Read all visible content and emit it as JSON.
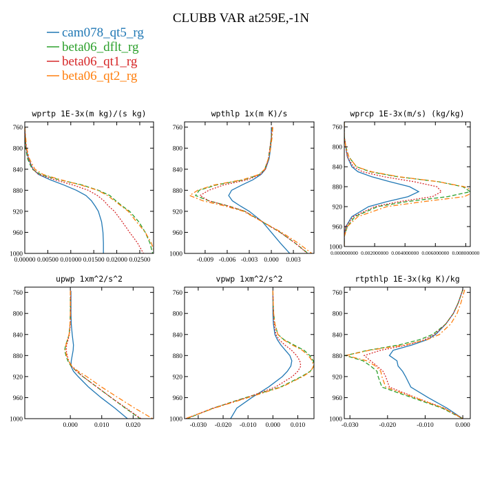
{
  "title": "CLUBB VAR at259E,-1N",
  "legend": [
    {
      "name": "cam078_qt5_rg",
      "color": "#1f77b4",
      "dash": "solid"
    },
    {
      "name": "beta06_dflt_rg",
      "color": "#2ca02c",
      "dash": "dash"
    },
    {
      "name": "beta06_qt1_rg",
      "color": "#d62728",
      "dash": "dot"
    },
    {
      "name": "beta06_qt2_rg",
      "color": "#ff7f0e",
      "dash": "dashdot"
    }
  ],
  "chart_data": [
    {
      "type": "line",
      "title": "wprtp  1E-3x(m kg)/(s kg)",
      "xlim": [
        0.0,
        0.028
      ],
      "ylim": [
        750,
        1000
      ],
      "y_reversed": true,
      "xticks": [
        "0.00000",
        "0.00500",
        "0.01000",
        "0.01500",
        "0.02000",
        "0.02500"
      ],
      "xtick_values": [
        0.0,
        0.005,
        0.01,
        0.015,
        0.02,
        0.025
      ],
      "yticks": [
        "760",
        "800",
        "840",
        "880",
        "920",
        "960",
        "1000"
      ],
      "ytick_values": [
        760,
        800,
        840,
        880,
        920,
        960,
        1000
      ],
      "y": [
        760,
        780,
        800,
        820,
        840,
        850,
        860,
        870,
        880,
        890,
        900,
        910,
        920,
        940,
        960,
        980,
        1000
      ],
      "series": [
        {
          "name": "cam078_qt5_rg",
          "x": [
            0.0,
            0.0001,
            0.0003,
            0.0008,
            0.0018,
            0.003,
            0.0055,
            0.0085,
            0.0112,
            0.0133,
            0.0145,
            0.0153,
            0.016,
            0.0167,
            0.017,
            0.0171,
            0.0171
          ]
        },
        {
          "name": "beta06_dflt_rg",
          "x": [
            0.0,
            0.0001,
            0.0002,
            0.0006,
            0.0016,
            0.0035,
            0.0075,
            0.0125,
            0.016,
            0.0185,
            0.0198,
            0.0212,
            0.0228,
            0.0248,
            0.0262,
            0.0272,
            0.0278
          ]
        },
        {
          "name": "beta06_qt1_rg",
          "x": [
            0.0,
            0.0001,
            0.0003,
            0.0008,
            0.0018,
            0.003,
            0.0065,
            0.0105,
            0.0138,
            0.0158,
            0.0172,
            0.0182,
            0.0195,
            0.0212,
            0.0228,
            0.0245,
            0.0258
          ]
        },
        {
          "name": "beta06_qt2_rg",
          "x": [
            0.0,
            0.0002,
            0.0004,
            0.001,
            0.0022,
            0.004,
            0.0078,
            0.0122,
            0.0158,
            0.018,
            0.0195,
            0.021,
            0.0225,
            0.0243,
            0.0262,
            0.0275,
            0.0283
          ]
        }
      ]
    },
    {
      "type": "line",
      "title": "wpthlp  1x(m K)/s",
      "xlim": [
        -0.0118,
        0.0058
      ],
      "ylim": [
        750,
        1000
      ],
      "y_reversed": true,
      "xticks": [
        "-0.009",
        "-0.006",
        "-0.003",
        "0.000",
        "0.003"
      ],
      "xtick_values": [
        -0.009,
        -0.006,
        -0.003,
        0.0,
        0.003
      ],
      "yticks": [
        "760",
        "800",
        "840",
        "880",
        "920",
        "960",
        "1000"
      ],
      "ytick_values": [
        760,
        800,
        840,
        880,
        920,
        960,
        1000
      ],
      "y": [
        760,
        780,
        800,
        820,
        840,
        850,
        860,
        870,
        880,
        890,
        900,
        910,
        920,
        940,
        960,
        980,
        1000
      ],
      "series": [
        {
          "name": "cam078_qt5_rg",
          "x": [
            0.0,
            0.0,
            -0.0001,
            -0.0003,
            -0.0008,
            -0.0014,
            -0.0025,
            -0.004,
            -0.0054,
            -0.0058,
            -0.0053,
            -0.0042,
            -0.003,
            -0.0012,
            0.0,
            0.0012,
            0.0025
          ]
        },
        {
          "name": "beta06_dflt_rg",
          "x": [
            0.0001,
            0.0,
            -0.0002,
            -0.0004,
            -0.0009,
            -0.0016,
            -0.0037,
            -0.0075,
            -0.0098,
            -0.0103,
            -0.0085,
            -0.0058,
            -0.0036,
            -0.0012,
            0.0012,
            0.0032,
            0.005
          ]
        },
        {
          "name": "beta06_qt1_rg",
          "x": [
            0.0001,
            0.0,
            -0.0002,
            -0.0004,
            -0.0008,
            -0.0015,
            -0.0032,
            -0.0065,
            -0.0085,
            -0.0097,
            -0.0085,
            -0.0058,
            -0.0036,
            -0.0012,
            0.0012,
            0.0032,
            0.0049
          ]
        },
        {
          "name": "beta06_qt2_rg",
          "x": [
            0.0002,
            0.0001,
            -0.0001,
            -0.0004,
            -0.0009,
            -0.0017,
            -0.0039,
            -0.0078,
            -0.01,
            -0.0111,
            -0.0093,
            -0.0063,
            -0.0038,
            -0.0012,
            0.0014,
            0.0036,
            0.0055
          ]
        }
      ]
    },
    {
      "type": "line",
      "title": "wprcp  1E-3x(m/s) (kg/kg)",
      "xlim": [
        0.0,
        0.0083
      ],
      "ylim": [
        750,
        1000
      ],
      "y_reversed": true,
      "xticks": [
        "0.000000000",
        "0.002000000",
        "0.004000000",
        "0.006000000",
        "0.008000000"
      ],
      "xtick_values": [
        0.0,
        0.002,
        0.004,
        0.006,
        0.008
      ],
      "yticks": [
        "760",
        "800",
        "840",
        "880",
        "920",
        "960",
        "1000"
      ],
      "ytick_values": [
        760,
        800,
        840,
        880,
        920,
        960,
        1000
      ],
      "y": [
        750,
        780,
        800,
        820,
        840,
        850,
        860,
        870,
        880,
        890,
        900,
        910,
        920,
        940,
        960,
        980,
        1000
      ],
      "series": [
        {
          "name": "cam078_qt5_rg",
          "x": [
            0.0,
            0.0,
            0.0001,
            0.0002,
            0.0005,
            0.0009,
            0.0018,
            0.003,
            0.0043,
            0.0049,
            0.0042,
            0.0028,
            0.0016,
            0.0005,
            0.0001,
            0.0,
            0.0
          ]
        },
        {
          "name": "beta06_dflt_rg",
          "x": [
            0.0,
            0.0,
            0.0001,
            0.0003,
            0.0008,
            0.0017,
            0.0035,
            0.0062,
            0.0078,
            0.0083,
            0.0068,
            0.0041,
            0.0022,
            0.0007,
            0.0002,
            0.0,
            0.0
          ]
        },
        {
          "name": "beta06_qt1_rg",
          "x": [
            0.0,
            0.0,
            0.0001,
            0.0002,
            0.0006,
            0.0012,
            0.0026,
            0.0046,
            0.0061,
            0.0064,
            0.0058,
            0.0036,
            0.002,
            0.0006,
            0.0001,
            0.0,
            0.0
          ]
        },
        {
          "name": "beta06_qt2_rg",
          "x": [
            0.0,
            0.0,
            0.0001,
            0.0003,
            0.0008,
            0.0018,
            0.0036,
            0.0062,
            0.0079,
            0.0086,
            0.0079,
            0.0052,
            0.0028,
            0.0009,
            0.0002,
            0.0,
            0.0
          ]
        }
      ]
    },
    {
      "type": "line",
      "title": "upwp  1xm^2/s^2",
      "xlim": [
        -0.0145,
        0.0265
      ],
      "ylim": [
        750,
        1000
      ],
      "y_reversed": true,
      "xticks": [
        "0.000",
        "0.010",
        "0.020"
      ],
      "xtick_values": [
        0.0,
        0.01,
        0.02
      ],
      "yticks": [
        "760",
        "800",
        "840",
        "880",
        "920",
        "960",
        "1000"
      ],
      "ytick_values": [
        760,
        800,
        840,
        880,
        920,
        960,
        1000
      ],
      "y": [
        757,
        780,
        800,
        820,
        840,
        850,
        860,
        870,
        880,
        890,
        900,
        910,
        920,
        940,
        960,
        980,
        1000
      ],
      "series": [
        {
          "name": "cam078_qt5_rg",
          "x": [
            0.0002,
            0.0002,
            0.0002,
            0.0003,
            0.0006,
            0.0008,
            0.001,
            0.0009,
            0.0006,
            0.0003,
            0.0002,
            0.001,
            0.0025,
            0.0058,
            0.0098,
            0.0142,
            0.0182
          ]
        },
        {
          "name": "beta06_dflt_rg",
          "x": [
            0.0,
            0.0,
            0.0,
            -0.0001,
            -0.0004,
            -0.0009,
            -0.0015,
            -0.0018,
            -0.0014,
            -0.0008,
            0.0002,
            0.002,
            0.004,
            0.0085,
            0.013,
            0.0175,
            0.0222
          ]
        },
        {
          "name": "beta06_qt1_rg",
          "x": [
            0.0001,
            0.0001,
            0.0001,
            0.0,
            -0.0003,
            -0.0007,
            -0.0012,
            -0.0013,
            -0.001,
            -0.0005,
            0.0003,
            0.002,
            0.004,
            0.0085,
            0.013,
            0.0178,
            0.0225
          ]
        },
        {
          "name": "beta06_qt2_rg",
          "x": [
            0.0,
            0.0,
            0.0,
            -0.0001,
            -0.0004,
            -0.0009,
            -0.0014,
            -0.0016,
            -0.0012,
            -0.0006,
            0.0005,
            0.0025,
            0.0052,
            0.01,
            0.0152,
            0.0205,
            0.0262
          ]
        }
      ]
    },
    {
      "type": "line",
      "title": "vpwp  1xm^2/s^2",
      "xlim": [
        -0.0355,
        0.0165
      ],
      "ylim": [
        750,
        1000
      ],
      "y_reversed": true,
      "xticks": [
        "-0.030",
        "-0.020",
        "-0.010",
        "0.000",
        "0.010"
      ],
      "xtick_values": [
        -0.03,
        -0.02,
        -0.01,
        0.0,
        0.01
      ],
      "yticks": [
        "760",
        "800",
        "840",
        "880",
        "920",
        "960",
        "1000"
      ],
      "ytick_values": [
        760,
        800,
        840,
        880,
        920,
        960,
        1000
      ],
      "y": [
        757,
        780,
        800,
        820,
        840,
        850,
        860,
        870,
        880,
        890,
        900,
        910,
        920,
        940,
        960,
        980,
        1000
      ],
      "series": [
        {
          "name": "cam078_qt5_rg",
          "x": [
            0.0,
            0.0,
            0.0,
            0.0002,
            0.0008,
            0.0018,
            0.0032,
            0.005,
            0.0068,
            0.0076,
            0.0072,
            0.0058,
            0.0038,
            -0.0018,
            -0.0085,
            -0.0145,
            -0.017
          ]
        },
        {
          "name": "beta06_dflt_rg",
          "x": [
            0.0,
            0.0001,
            0.0003,
            0.0008,
            0.002,
            0.0045,
            0.0085,
            0.0125,
            0.0148,
            0.0162,
            0.0165,
            0.015,
            0.0115,
            0.003,
            -0.011,
            -0.024,
            -0.0345
          ]
        },
        {
          "name": "beta06_qt1_rg",
          "x": [
            0.0,
            0.0001,
            0.0002,
            0.0005,
            0.0012,
            0.0025,
            0.0048,
            0.0075,
            0.0095,
            0.0108,
            0.0112,
            0.01,
            0.0078,
            0.001,
            -0.0105,
            -0.024,
            -0.035
          ]
        },
        {
          "name": "beta06_qt2_rg",
          "x": [
            0.0,
            0.0001,
            0.0003,
            0.0008,
            0.002,
            0.0042,
            0.0078,
            0.0118,
            0.0142,
            0.0158,
            0.0163,
            0.0152,
            0.012,
            0.0035,
            -0.01,
            -0.0235,
            -0.0352
          ]
        }
      ]
    },
    {
      "type": "line",
      "title": "rtpthlp  1E-3x(kg K)/kg",
      "xlim": [
        -0.0315,
        0.002
      ],
      "ylim": [
        750,
        1000
      ],
      "y_reversed": true,
      "xticks": [
        "-0.030",
        "-0.020",
        "-0.010",
        "0.000"
      ],
      "xtick_values": [
        -0.03,
        -0.02,
        -0.01,
        0.0
      ],
      "yticks": [
        "760",
        "800",
        "840",
        "880",
        "920",
        "960",
        "1000"
      ],
      "ytick_values": [
        760,
        800,
        840,
        880,
        920,
        960,
        1000
      ],
      "y": [
        755,
        780,
        800,
        820,
        840,
        850,
        860,
        870,
        880,
        890,
        900,
        910,
        920,
        940,
        960,
        980,
        1000
      ],
      "series": [
        {
          "name": "cam078_qt5_rg",
          "x": [
            0.0,
            -0.0012,
            -0.0025,
            -0.0045,
            -0.0072,
            -0.0095,
            -0.0135,
            -0.0185,
            -0.0195,
            -0.0175,
            -0.0172,
            -0.016,
            -0.0152,
            -0.0138,
            -0.0092,
            -0.0042,
            0.0
          ]
        },
        {
          "name": "beta06_dflt_rg",
          "x": [
            0.0,
            -0.0012,
            -0.0025,
            -0.0045,
            -0.008,
            -0.0115,
            -0.017,
            -0.0252,
            -0.0312,
            -0.0265,
            -0.0245,
            -0.0228,
            -0.0225,
            -0.0215,
            -0.0135,
            -0.0055,
            0.0
          ]
        },
        {
          "name": "beta06_qt1_rg",
          "x": [
            0.0,
            -0.0012,
            -0.0025,
            -0.0045,
            -0.0075,
            -0.0102,
            -0.0148,
            -0.0218,
            -0.0262,
            -0.0245,
            -0.0228,
            -0.0212,
            -0.0205,
            -0.0195,
            -0.0125,
            -0.005,
            0.0
          ]
        },
        {
          "name": "beta06_qt2_rg",
          "x": [
            0.0005,
            -0.0005,
            -0.0015,
            -0.0032,
            -0.0062,
            -0.0095,
            -0.0155,
            -0.0248,
            -0.031,
            -0.0255,
            -0.0232,
            -0.0218,
            -0.0215,
            -0.0205,
            -0.0128,
            -0.005,
            0.0
          ]
        }
      ]
    }
  ]
}
